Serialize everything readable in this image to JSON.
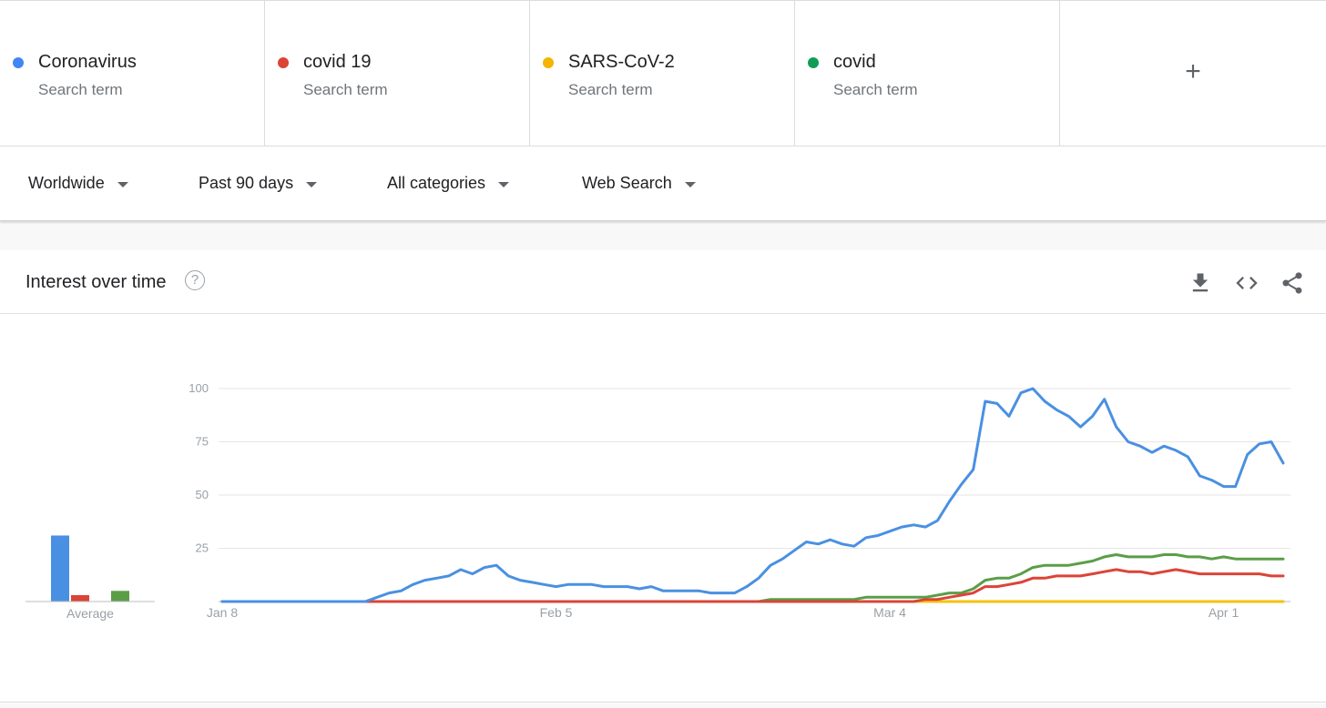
{
  "terms": [
    {
      "name": "Coronavirus",
      "sub": "Search term",
      "color": "#4285f4"
    },
    {
      "name": "covid 19",
      "sub": "Search term",
      "color": "#db4437"
    },
    {
      "name": "SARS-CoV-2",
      "sub": "Search term",
      "color": "#f4b400"
    },
    {
      "name": "covid",
      "sub": "Search term",
      "color": "#0f9d58"
    }
  ],
  "add_term_label": "+",
  "filters": {
    "region": "Worldwide",
    "time": "Past 90 days",
    "category": "All categories",
    "search_type": "Web Search"
  },
  "card": {
    "title": "Interest over time",
    "help": "?",
    "icons": [
      "download-icon",
      "embed-icon",
      "share-icon"
    ]
  },
  "chart_data": {
    "type": "line",
    "title": "",
    "xlabel": "",
    "ylabel": "",
    "ylim": [
      0,
      100
    ],
    "yticks": [
      25,
      50,
      75,
      100
    ],
    "xtick_labels": [
      {
        "label": "Jan 8",
        "index": 0
      },
      {
        "label": "Feb 5",
        "index": 28
      },
      {
        "label": "Mar 4",
        "index": 56
      },
      {
        "label": "Apr 1",
        "index": 84
      }
    ],
    "n_points": 90,
    "grid": true,
    "series": [
      {
        "name": "Coronavirus",
        "color": "#4a90e2",
        "values": [
          0,
          0,
          0,
          0,
          0,
          0,
          0,
          0,
          0,
          0,
          0,
          0,
          0,
          2,
          4,
          5,
          8,
          10,
          11,
          12,
          15,
          13,
          16,
          17,
          12,
          10,
          9,
          8,
          7,
          8,
          8,
          8,
          7,
          7,
          7,
          6,
          7,
          5,
          5,
          5,
          5,
          4,
          4,
          4,
          7,
          11,
          17,
          20,
          24,
          28,
          27,
          29,
          27,
          26,
          30,
          31,
          33,
          35,
          36,
          35,
          38,
          47,
          55,
          62,
          94,
          93,
          87,
          98,
          100,
          94,
          90,
          87,
          82,
          87,
          95,
          82,
          75,
          73,
          70,
          73,
          71,
          68,
          59,
          57,
          54,
          54,
          69,
          74,
          75,
          65
        ]
      },
      {
        "name": "covid 19",
        "color": "#db4437",
        "values": [
          0,
          0,
          0,
          0,
          0,
          0,
          0,
          0,
          0,
          0,
          0,
          0,
          0,
          0,
          0,
          0,
          0,
          0,
          0,
          0,
          0,
          0,
          0,
          0,
          0,
          0,
          0,
          0,
          0,
          0,
          0,
          0,
          0,
          0,
          0,
          0,
          0,
          0,
          0,
          0,
          0,
          0,
          0,
          0,
          0,
          0,
          0,
          0,
          0,
          0,
          0,
          0,
          0,
          0,
          0,
          0,
          0,
          0,
          0,
          1,
          1,
          2,
          3,
          4,
          7,
          7,
          8,
          9,
          11,
          11,
          12,
          12,
          12,
          13,
          14,
          15,
          14,
          14,
          13,
          14,
          15,
          14,
          13,
          13,
          13,
          13,
          13,
          13,
          12,
          12
        ]
      },
      {
        "name": "SARS-CoV-2",
        "color": "#f4c20d",
        "values": [
          0,
          0,
          0,
          0,
          0,
          0,
          0,
          0,
          0,
          0,
          0,
          0,
          0,
          0,
          0,
          0,
          0,
          0,
          0,
          0,
          0,
          0,
          0,
          0,
          0,
          0,
          0,
          0,
          0,
          0,
          0,
          0,
          0,
          0,
          0,
          0,
          0,
          0,
          0,
          0,
          0,
          0,
          0,
          0,
          0,
          0,
          0,
          0,
          0,
          0,
          0,
          0,
          0,
          0,
          0,
          0,
          0,
          0,
          0,
          0,
          0,
          0,
          0,
          0,
          0,
          0,
          0,
          0,
          0,
          0,
          0,
          0,
          0,
          0,
          0,
          0,
          0,
          0,
          0,
          0,
          0,
          0,
          0,
          0,
          0,
          0,
          0,
          0,
          0,
          0
        ]
      },
      {
        "name": "covid",
        "color": "#5a9e48",
        "values": [
          0,
          0,
          0,
          0,
          0,
          0,
          0,
          0,
          0,
          0,
          0,
          0,
          0,
          0,
          0,
          0,
          0,
          0,
          0,
          0,
          0,
          0,
          0,
          0,
          0,
          0,
          0,
          0,
          0,
          0,
          0,
          0,
          0,
          0,
          0,
          0,
          0,
          0,
          0,
          0,
          0,
          0,
          0,
          0,
          0,
          0,
          1,
          1,
          1,
          1,
          1,
          1,
          1,
          1,
          2,
          2,
          2,
          2,
          2,
          2,
          3,
          4,
          4,
          6,
          10,
          11,
          11,
          13,
          16,
          17,
          17,
          17,
          18,
          19,
          21,
          22,
          21,
          21,
          21,
          22,
          22,
          21,
          21,
          20,
          21,
          20,
          20,
          20,
          20,
          20
        ]
      }
    ],
    "average": {
      "label": "Average",
      "values": [
        31,
        3,
        0,
        5
      ]
    }
  }
}
